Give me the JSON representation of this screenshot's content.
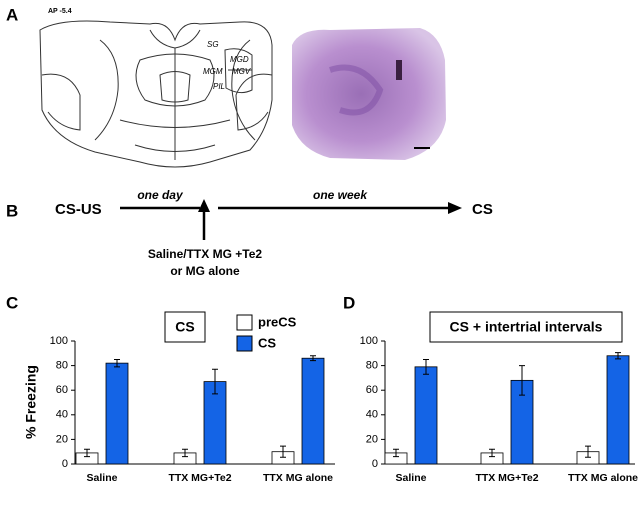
{
  "figure": {
    "panel_labels": [
      "A",
      "B",
      "C",
      "D"
    ],
    "atlas": {
      "level": "AP -5.4",
      "regions": [
        "SG",
        "MGD",
        "MGM",
        "MGV",
        "PIL"
      ]
    },
    "timeline": {
      "start": "CS-US",
      "interval1": "one day",
      "treatment": [
        "Saline/TTX MG +Te2",
        "or MG alone"
      ],
      "interval2": "one week",
      "end": "CS"
    }
  },
  "chart_data": [
    {
      "type": "bar",
      "title": "CS",
      "ylabel": "% Freezing",
      "categories": [
        "Saline",
        "TTX MG+Te2",
        "TTX MG alone"
      ],
      "series": [
        {
          "name": "preCS",
          "color": "#ffffff",
          "values": [
            9,
            9,
            10
          ],
          "errors": [
            3,
            3,
            4.5
          ]
        },
        {
          "name": "CS",
          "color": "#1464e6",
          "values": [
            82,
            67,
            86
          ],
          "errors": [
            3,
            10,
            2
          ]
        }
      ],
      "ylim": [
        0,
        100
      ],
      "yticks": [
        0,
        20,
        40,
        60,
        80,
        100
      ]
    },
    {
      "type": "bar",
      "title": "CS + intertrial intervals",
      "categories": [
        "Saline",
        "TTX MG+Te2",
        "TTX MG alone"
      ],
      "series": [
        {
          "color": "#ffffff",
          "values": [
            9,
            9,
            10
          ],
          "errors": [
            3,
            3,
            4.5
          ]
        },
        {
          "color": "#1464e6",
          "values": [
            79,
            68,
            88
          ],
          "errors": [
            6,
            12,
            2.5
          ]
        }
      ],
      "ylim": [
        0,
        100
      ],
      "yticks": [
        0,
        20,
        40,
        60,
        80,
        100
      ]
    }
  ]
}
